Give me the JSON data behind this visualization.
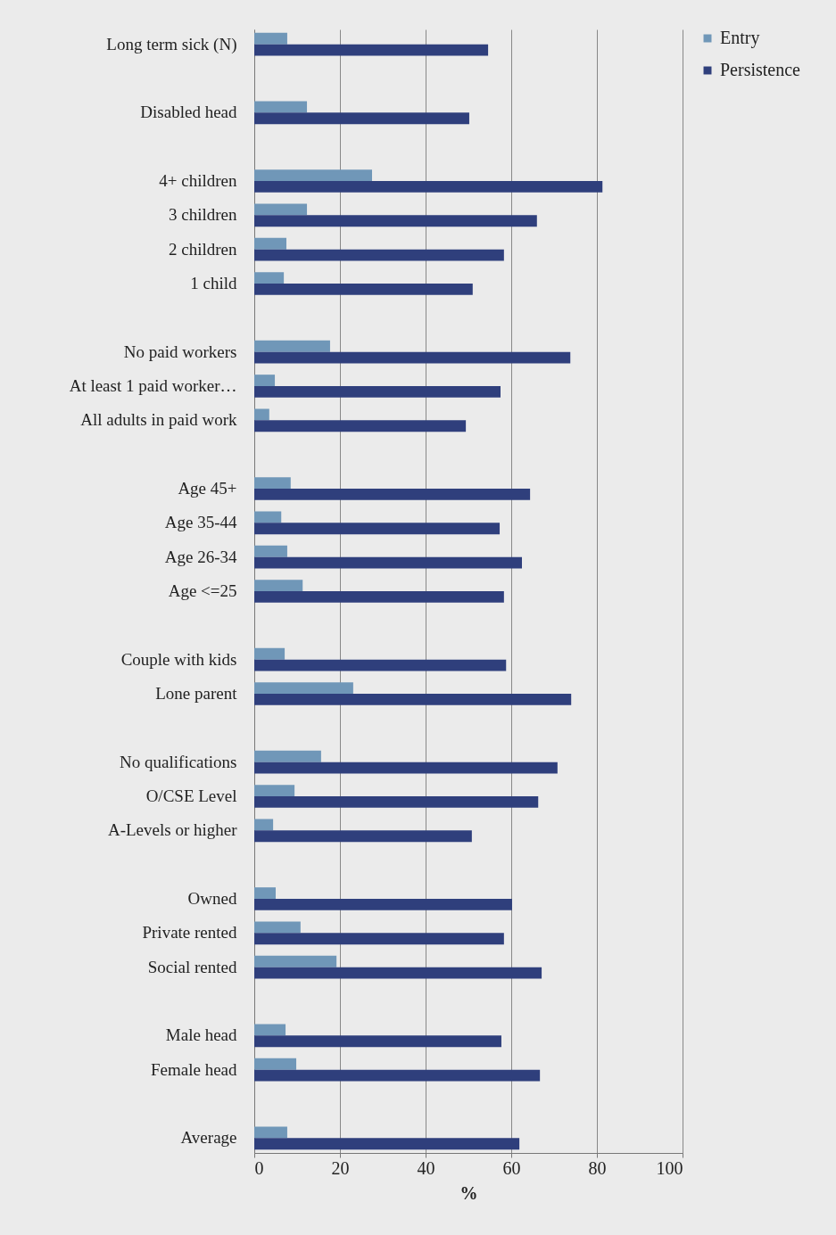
{
  "chart_data": {
    "type": "bar",
    "orientation": "horizontal",
    "xlabel": "%",
    "xlim": [
      0,
      100
    ],
    "xticks": [
      0,
      20,
      40,
      60,
      80,
      100
    ],
    "grid": "x",
    "legend": "right",
    "categories": [
      "Long term sick (N)",
      null,
      "Disabled head",
      null,
      "4+ children",
      "3 children",
      "2 children",
      "1 child",
      null,
      "No paid workers",
      "At least 1 paid worker…",
      "All adults in paid work",
      null,
      "Age 45+",
      "Age 35-44",
      "Age 26-34",
      "Age <=25",
      null,
      "Couple with kids",
      "Lone parent",
      null,
      "No qualifications",
      "O/CSE Level",
      "A-Levels or higher",
      null,
      "Owned",
      "Private rented",
      "Social rented",
      null,
      "Male head",
      "Female head",
      null,
      "Average"
    ],
    "series": [
      {
        "name": "Entry",
        "color": "#7097b8",
        "values": [
          7.7,
          null,
          12.3,
          null,
          27.5,
          12.3,
          7.5,
          6.9,
          null,
          17.7,
          4.8,
          3.5,
          null,
          8.5,
          6.3,
          7.7,
          11.3,
          null,
          7.1,
          23.1,
          null,
          15.6,
          9.4,
          4.4,
          null,
          5.0,
          10.8,
          19.2,
          null,
          7.3,
          9.8,
          null,
          7.7
        ]
      },
      {
        "name": "Persistence",
        "color": "#2f3f7c",
        "values": [
          54.6,
          null,
          50.2,
          null,
          81.3,
          66.0,
          58.3,
          51.0,
          null,
          73.8,
          57.5,
          49.4,
          null,
          64.4,
          57.3,
          62.5,
          58.3,
          null,
          58.8,
          74.0,
          null,
          70.8,
          66.3,
          50.8,
          null,
          60.2,
          58.3,
          67.1,
          null,
          57.7,
          66.7,
          null,
          61.9
        ]
      }
    ]
  }
}
